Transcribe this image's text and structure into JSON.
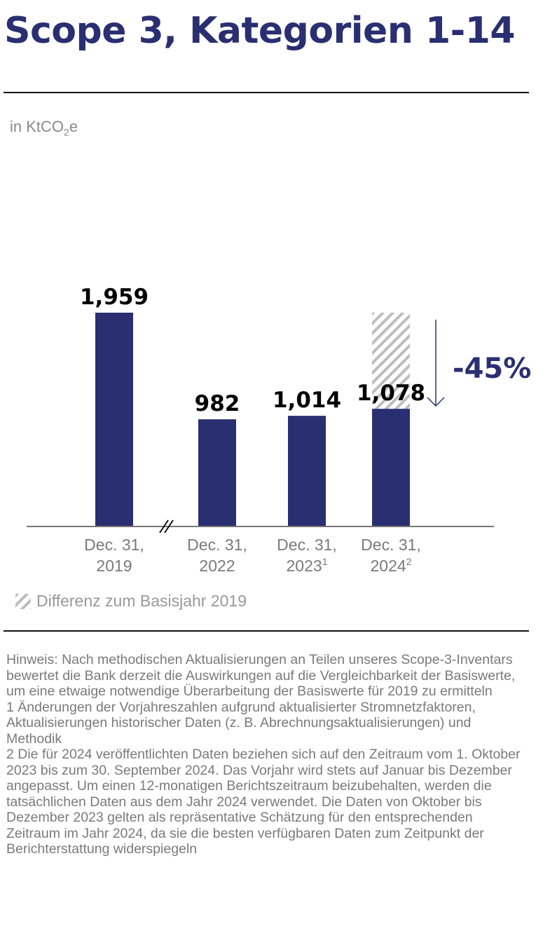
{
  "title": "Scope 3, Kategorien 1-14",
  "unit_prefix": "in KtCO",
  "unit_sub": "2",
  "unit_suffix": "e",
  "chart_data": {
    "type": "bar",
    "categories": [
      {
        "line1": "Dec. 31,",
        "line2": "2019",
        "sup": ""
      },
      {
        "line1": "Dec. 31,",
        "line2": "2022",
        "sup": ""
      },
      {
        "line1": "Dec. 31,",
        "line2": "2023",
        "sup": "1"
      },
      {
        "line1": "Dec. 31,",
        "line2": "2024",
        "sup": "2"
      }
    ],
    "values": [
      1959,
      982,
      1014,
      1078
    ],
    "labels": [
      "1,959",
      "982",
      "1,014",
      "1,078"
    ],
    "baseline_difference": {
      "category_index": 3,
      "from": 1078,
      "to": 1959
    },
    "change_label": "-45%",
    "axis_break_between": [
      0,
      1
    ],
    "bar_color": "#2a2f72",
    "hatch_color": "#bdbdbd"
  },
  "legend": {
    "label": "Differenz zum Basisjahr 2019"
  },
  "notes": [
    "Hinweis: Nach methodischen Aktualisierungen an Teilen unseres Scope-3-Inventars bewertet die Bank derzeit die Auswirkungen auf die Vergleichbarkeit der Basiswerte, um eine etwaige notwendige Überarbeitung der Basiswerte für 2019 zu ermitteln",
    "1 Änderungen der Vorjahreszahlen aufgrund aktualisierter Stromnetzfaktoren, Aktualisierungen historischer Daten (z. B. Abrechnungsaktualisierungen) und Methodik",
    "2 Die für 2024 veröffentlichten Daten beziehen sich auf den Zeitraum vom 1. Oktober 2023 bis zum 30. September 2024. Das Vorjahr wird stets auf Januar bis Dezember angepasst. Um einen 12-monatigen Berichtszeitraum beizubehalten, werden die tatsächlichen Daten aus dem Jahr 2024 verwendet. Die Daten von Oktober bis Dezember 2023 gelten als repräsentative Schätzung für den entsprechenden Zeitraum im Jahr 2024, da sie die besten verfügbaren Daten zum Zeitpunkt der Berichterstattung widerspiegeln"
  ]
}
